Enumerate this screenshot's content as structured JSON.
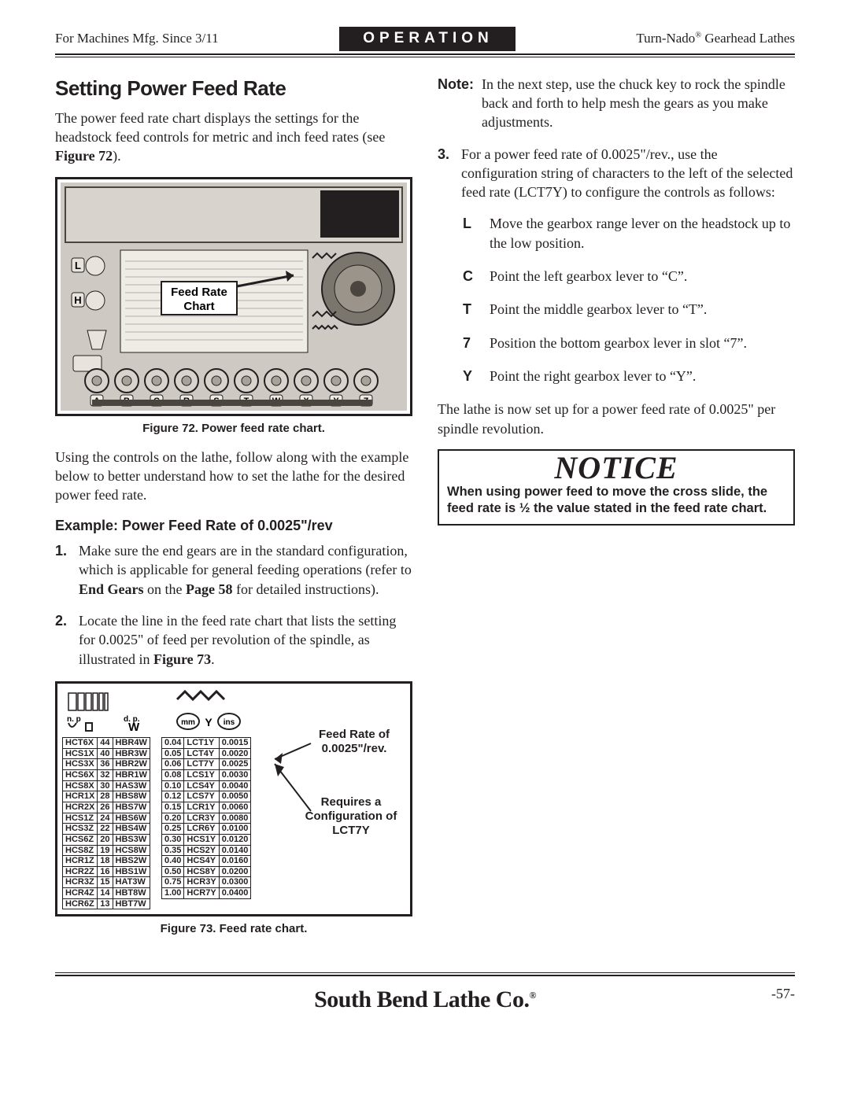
{
  "header": {
    "left": "For Machines Mfg. Since 3/11",
    "center": "OPERATION",
    "right_pre": "Turn-Nado",
    "right_post": " Gearhead Lathes"
  },
  "section_title": "Setting Power Feed Rate",
  "intro": "The power feed rate chart displays the settings for the headstock feed controls for metric and inch feed rates (see ",
  "intro_figref": "Figure 72",
  "intro_tail": ").",
  "fig72": {
    "label": "Feed Rate Chart",
    "caption": "Figure 72. Power feed rate chart.",
    "knob_letters": [
      "A",
      "B",
      "C",
      "R",
      "S",
      "T",
      "W",
      "X",
      "Y",
      "Z"
    ],
    "left_letters": [
      "L",
      "H"
    ]
  },
  "para2": "Using the controls on the lathe, follow along with the example below to better understand how to set the lathe for the desired power feed rate.",
  "example_title": "Example: Power Feed Rate of 0.0025\"/rev",
  "steps_left": [
    {
      "n": "1.",
      "t": "Make sure the end gears are in the standard configuration, which is applicable for general feeding operations (refer to <b>End Gears</b> on the <b>Page 58</b> for detailed instructions)."
    },
    {
      "n": "2.",
      "t": "Locate the line in the feed rate chart that lists the setting for 0.0025\" of feed per revolution of the spindle, as illustrated in <b>Figure 73</b>."
    }
  ],
  "note": {
    "label": "Note:",
    "text": "In the next step, use the chuck key to rock the spindle back and forth to help mesh the gears as you make adjustments."
  },
  "step3": {
    "n": "3.",
    "t": "For a power feed rate of 0.0025\"/rev., use the configuration string of characters to the left of the selected feed rate (LCT7Y) to configure the controls as follows:"
  },
  "sub_letters": [
    {
      "l": "L",
      "t": "Move the gearbox range lever on the headstock up to the low position."
    },
    {
      "l": "C",
      "t": "Point the left gearbox lever to “C”."
    },
    {
      "l": "T",
      "t": "Point the middle gearbox lever to “T”."
    },
    {
      "l": "7",
      "t": "Position the bottom gearbox lever in slot “7”."
    },
    {
      "l": "Y",
      "t": "Point the right gearbox lever to “Y”."
    }
  ],
  "closing": "The lathe is now set up for a power feed rate of 0.0025\" per spindle revolution.",
  "notice": {
    "title": "NOTICE",
    "body": "When using power feed to move the cross slide, the feed rate is ½ the value stated in the feed rate chart."
  },
  "fig73": {
    "caption": "Figure 73. Feed rate chart.",
    "head_left_top": "n. p",
    "head_left_mid": "d. p.",
    "head_left_w": "W",
    "head_right_mm": "mm",
    "head_right_y": "Y",
    "head_right_ins": "ins",
    "rowsL": [
      [
        "HCT6X",
        "44",
        "HBR4W"
      ],
      [
        "HCS1X",
        "40",
        "HBR3W"
      ],
      [
        "HCS3X",
        "36",
        "HBR2W"
      ],
      [
        "HCS6X",
        "32",
        "HBR1W"
      ],
      [
        "HCS8X",
        "30",
        "HAS3W"
      ],
      [
        "HCR1X",
        "28",
        "HBS8W"
      ],
      [
        "HCR2X",
        "26",
        "HBS7W"
      ],
      [
        "HCS1Z",
        "24",
        "HBS6W"
      ],
      [
        "HCS3Z",
        "22",
        "HBS4W"
      ],
      [
        "HCS6Z",
        "20",
        "HBS3W"
      ],
      [
        "HCS8Z",
        "19",
        "HCS8W"
      ],
      [
        "HCR1Z",
        "18",
        "HBS2W"
      ],
      [
        "HCR2Z",
        "16",
        "HBS1W"
      ],
      [
        "HCR3Z",
        "15",
        "HAT3W"
      ],
      [
        "HCR4Z",
        "14",
        "HBT8W"
      ],
      [
        "HCR6Z",
        "13",
        "HBT7W"
      ]
    ],
    "rowsR": [
      [
        "0.04",
        "LCT1Y",
        "0.0015"
      ],
      [
        "0.05",
        "LCT4Y",
        "0.0020"
      ],
      [
        "0.06",
        "LCT7Y",
        "0.0025"
      ],
      [
        "0.08",
        "LCS1Y",
        "0.0030"
      ],
      [
        "0.10",
        "LCS4Y",
        "0.0040"
      ],
      [
        "0.12",
        "LCS7Y",
        "0.0050"
      ],
      [
        "0.15",
        "LCR1Y",
        "0.0060"
      ],
      [
        "0.20",
        "LCR3Y",
        "0.0080"
      ],
      [
        "0.25",
        "LCR6Y",
        "0.0100"
      ],
      [
        "0.30",
        "HCS1Y",
        "0.0120"
      ],
      [
        "0.35",
        "HCS2Y",
        "0.0140"
      ],
      [
        "0.40",
        "HCS4Y",
        "0.0160"
      ],
      [
        "0.50",
        "HCS8Y",
        "0.0200"
      ],
      [
        "0.75",
        "HCR3Y",
        "0.0300"
      ],
      [
        "1.00",
        "HCR7Y",
        "0.0400"
      ]
    ],
    "callout1a": "Feed Rate of",
    "callout1b": "0.0025\"/rev.",
    "callout2a": "Requires a",
    "callout2b": "Configuration of",
    "callout2c": "LCT7Y"
  },
  "footer": {
    "company": "South Bend Lathe Co.",
    "page": "-57-"
  },
  "colors": {
    "text": "#231f20",
    "panel": "#cec9c3",
    "panel_dark": "#a8a29a",
    "white": "#ffffff"
  }
}
